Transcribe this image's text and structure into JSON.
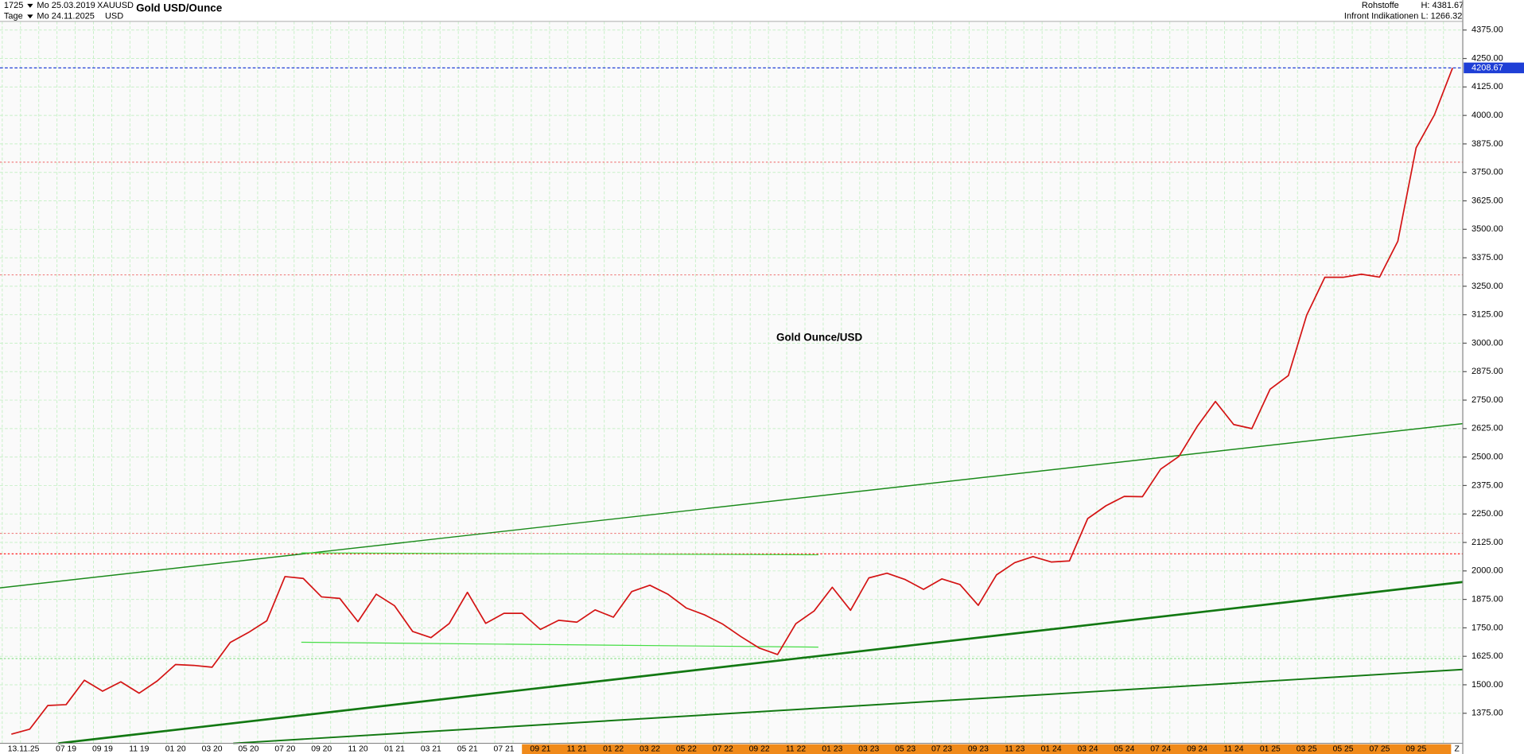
{
  "header": {
    "count": "1725",
    "start_date": "Mo 25.03.2019",
    "symbol": "XAUUSD",
    "title": "Gold USD/Ounce",
    "period": "Tage",
    "end_date": "Mo 24.11.2025",
    "currency": "USD",
    "category": "Rohstoffe",
    "high": "H: 4381.67",
    "source": "Infront Indikationen",
    "low": "L: 1266.32"
  },
  "chart_data": {
    "type": "line",
    "title": "Gold Ounce/USD",
    "cursor_date": "13.11.25",
    "axis_marker": "Z",
    "categories": [
      null,
      null,
      null,
      "07 19",
      null,
      "09 19",
      null,
      "11 19",
      null,
      "01 20",
      null,
      "03 20",
      null,
      "05 20",
      null,
      "07 20",
      null,
      "09 20",
      null,
      "11 20",
      null,
      "01 21",
      null,
      "03 21",
      null,
      "05 21",
      null,
      "07 21",
      null,
      "09 21",
      null,
      "11 21",
      null,
      "01 22",
      null,
      "03 22",
      null,
      "05 22",
      null,
      "07 22",
      null,
      "09 22",
      null,
      "11 22",
      null,
      "01 23",
      null,
      "03 23",
      null,
      "05 23",
      null,
      "07 23",
      null,
      "09 23",
      null,
      "11 23",
      null,
      "01 24",
      null,
      "03 24",
      null,
      "05 24",
      null,
      "07 24",
      null,
      "09 24",
      null,
      "11 24",
      null,
      "01 25",
      null,
      "03 25",
      null,
      "05 25",
      null,
      "07 25",
      null,
      "09 25",
      null,
      null
    ],
    "series": [
      {
        "name": "XAUUSD",
        "color": "#d41414",
        "values": [
          1283,
          1305,
          1409,
          1413,
          1520,
          1472,
          1513,
          1463,
          1517,
          1589,
          1585,
          1577,
          1686,
          1730,
          1781,
          1975,
          1967,
          1886,
          1879,
          1777,
          1898,
          1847,
          1734,
          1707,
          1769,
          1906,
          1770,
          1814,
          1814,
          1743,
          1783,
          1775,
          1829,
          1797,
          1909,
          1937,
          1897,
          1837,
          1807,
          1766,
          1711,
          1661,
          1633,
          1768,
          1824,
          1928,
          1827,
          1969,
          1990,
          1962,
          1919,
          1965,
          1940,
          1849,
          1983,
          2036,
          2063,
          2039,
          2044,
          2230,
          2286,
          2327,
          2326,
          2447,
          2503,
          2634,
          2744,
          2643,
          2625,
          2798,
          2858,
          3123,
          3289,
          3289,
          3303,
          3290,
          3448,
          3858,
          4002,
          4208.67
        ]
      }
    ],
    "ylim": [
      1243,
      4413
    ],
    "yticks": [
      {
        "value": 1375,
        "label": "1375.00"
      },
      {
        "value": 1500,
        "label": "1500.00"
      },
      {
        "value": 1625,
        "label": "1625.00"
      },
      {
        "value": 1750,
        "label": "1750.00"
      },
      {
        "value": 1875,
        "label": "1875.00"
      },
      {
        "value": 2000,
        "label": "2000.00"
      },
      {
        "value": 2125,
        "label": "2125.00"
      },
      {
        "value": 2250,
        "label": "2250.00"
      },
      {
        "value": 2375,
        "label": "2375.00"
      },
      {
        "value": 2500,
        "label": "2500.00"
      },
      {
        "value": 2625,
        "label": "2625.00"
      },
      {
        "value": 2750,
        "label": "2750.00"
      },
      {
        "value": 2875,
        "label": "2875.00"
      },
      {
        "value": 3000,
        "label": "3000.00"
      },
      {
        "value": 3125,
        "label": "3125.00"
      },
      {
        "value": 3250,
        "label": "3250.00"
      },
      {
        "value": 3375,
        "label": "3375.00"
      },
      {
        "value": 3500,
        "label": "3500.00"
      },
      {
        "value": 3625,
        "label": "3625.00"
      },
      {
        "value": 3750,
        "label": "3750.00"
      },
      {
        "value": 3875,
        "label": "3875.00"
      },
      {
        "value": 4000,
        "label": "4000.00"
      },
      {
        "value": 4125,
        "label": "4125.00"
      },
      {
        "value": 4250,
        "label": "4250.00"
      },
      {
        "value": 4375,
        "label": "4375.00"
      }
    ],
    "grid": true,
    "grid_color": "#c8f0c8",
    "last_price": 4208.67,
    "last_price_color": "#1f3fd6",
    "reference_lines": [
      {
        "value": 3795,
        "color": "#f08080"
      },
      {
        "value": 3300,
        "color": "#f08080"
      },
      {
        "value": 2165,
        "color": "#f08080"
      },
      {
        "value": 2075,
        "color": "#ff2020"
      },
      {
        "value": 1615,
        "color": "#8ee08e"
      }
    ]
  }
}
